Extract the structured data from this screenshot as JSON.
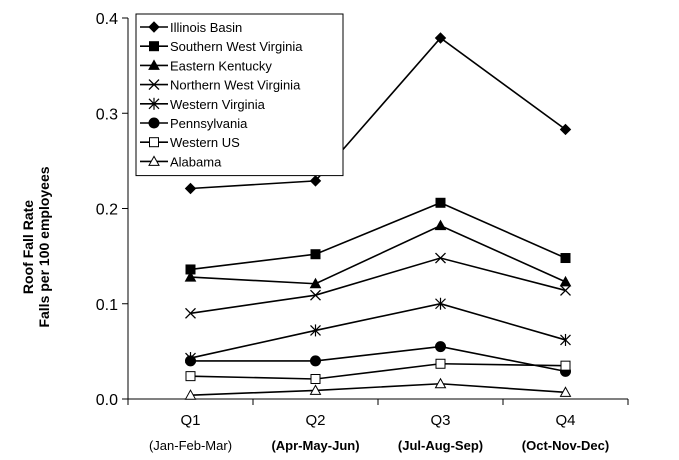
{
  "chart_data": {
    "type": "line",
    "title": "",
    "ylabel": [
      "Roof Fall Rate",
      "Falls per 100 employees"
    ],
    "xlabel": "",
    "ylim": [
      0,
      0.4
    ],
    "yticks": [
      "0.0",
      "0.1",
      "0.2",
      "0.3",
      "0.4"
    ],
    "ytick_values": [
      0,
      0.1,
      0.2,
      0.3,
      0.4
    ],
    "categories": [
      "Q1",
      "Q2",
      "Q3",
      "Q4"
    ],
    "category_sublabels": [
      "(Jan-Feb-Mar)",
      "(Apr-May-Jun)",
      "(Jul-Aug-Sep)",
      "(Oct-Nov-Dec)"
    ],
    "grid": false,
    "legend_position": "top-left",
    "series": [
      {
        "name": "Illinois Basin",
        "marker": "diamond",
        "values": [
          0.221,
          0.229,
          0.379,
          0.283
        ]
      },
      {
        "name": "Southern West Virginia",
        "marker": "square",
        "values": [
          0.136,
          0.152,
          0.206,
          0.148
        ]
      },
      {
        "name": "Eastern Kentucky",
        "marker": "triangle",
        "values": [
          0.128,
          0.121,
          0.182,
          0.123
        ]
      },
      {
        "name": "Northern West Virginia",
        "marker": "x",
        "values": [
          0.09,
          0.109,
          0.148,
          0.114
        ]
      },
      {
        "name": "Western Virginia",
        "marker": "star",
        "values": [
          0.043,
          0.072,
          0.1,
          0.062
        ]
      },
      {
        "name": "Pennsylvania",
        "marker": "circle",
        "values": [
          0.04,
          0.04,
          0.055,
          0.029
        ]
      },
      {
        "name": "Western US",
        "marker": "open-square",
        "values": [
          0.024,
          0.021,
          0.037,
          0.035
        ]
      },
      {
        "name": "Alabama",
        "marker": "open-triangle",
        "values": [
          0.004,
          0.009,
          0.016,
          0.007
        ]
      }
    ]
  }
}
